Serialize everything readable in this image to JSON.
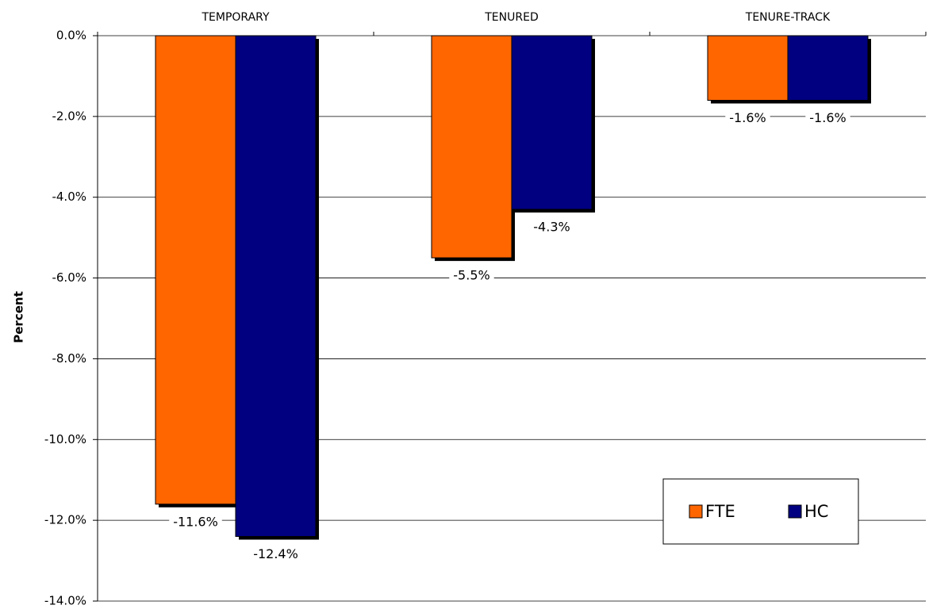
{
  "chart_data": {
    "type": "bar",
    "categories": [
      "TEMPORARY",
      "TENURED",
      "TENURE-TRACK"
    ],
    "series": [
      {
        "name": "FTE",
        "color": "#ff6600",
        "values": [
          -11.6,
          -5.5,
          -1.6
        ],
        "value_labels": [
          "-11.6%",
          "-5.5%",
          "-1.6%"
        ]
      },
      {
        "name": "HC",
        "color": "#000080",
        "values": [
          -12.4,
          -4.3,
          -1.6
        ],
        "value_labels": [
          "-12.4%",
          "-4.3%",
          "-1.6%"
        ]
      }
    ],
    "y_label": "Percent",
    "ylim": [
      -14,
      0
    ],
    "yticks": [
      {
        "value": 0,
        "label": "0.0%"
      },
      {
        "value": -2,
        "label": "-2.0%"
      },
      {
        "value": -4,
        "label": "-4.0%"
      },
      {
        "value": -6,
        "label": "-6.0%"
      },
      {
        "value": -8,
        "label": "-8.0%"
      },
      {
        "value": -10,
        "label": "-10.0%"
      },
      {
        "value": -12,
        "label": "-12.0%"
      },
      {
        "value": -14,
        "label": "-14.0%"
      }
    ],
    "grid": true,
    "legend": "lower right"
  }
}
